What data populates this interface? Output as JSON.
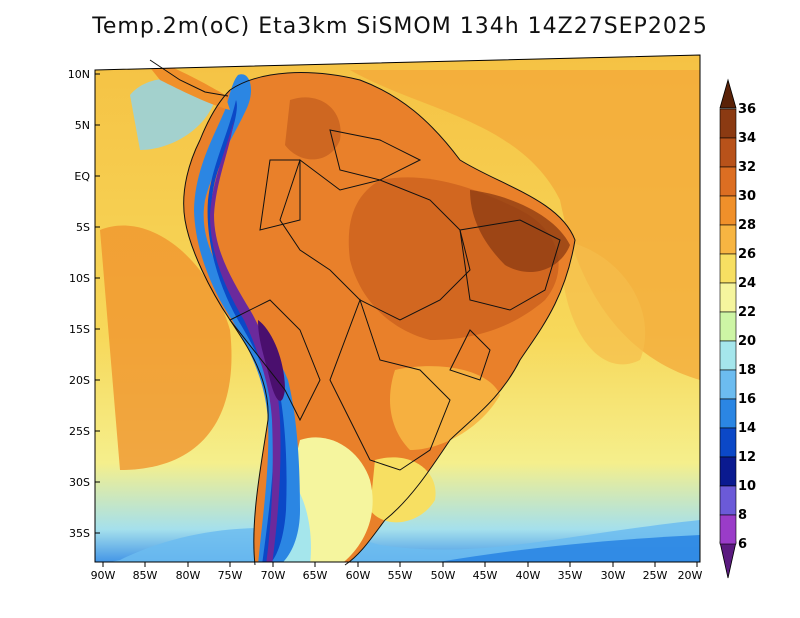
{
  "title": "Temp.2m(oC) Eta3km SiSMOM 134h 14Z27SEP2025",
  "map": {
    "lat_labels": [
      "10N",
      "5N",
      "EQ",
      "5S",
      "10S",
      "15S",
      "20S",
      "25S",
      "30S",
      "35S"
    ],
    "lon_labels": [
      "90W",
      "85W",
      "80W",
      "75W",
      "70W",
      "65W",
      "60W",
      "55W",
      "50W",
      "45W",
      "40W",
      "35W",
      "30W",
      "25W",
      "20W"
    ]
  },
  "colorbar": {
    "labels": [
      "36",
      "34",
      "32",
      "30",
      "28",
      "26",
      "24",
      "22",
      "20",
      "18",
      "16",
      "14",
      "12",
      "10",
      "8",
      "6"
    ],
    "colors": [
      "#5a2208",
      "#8b3a12",
      "#b8521a",
      "#dc6e22",
      "#f0902a",
      "#f7b542",
      "#f7df62",
      "#f5f59e",
      "#cdf5a5",
      "#a5e6ec",
      "#6cbcf0",
      "#2b86e3",
      "#0b48c7",
      "#0a1a90",
      "#6b5ad8",
      "#9a3cc8",
      "#5b1a80"
    ]
  }
}
